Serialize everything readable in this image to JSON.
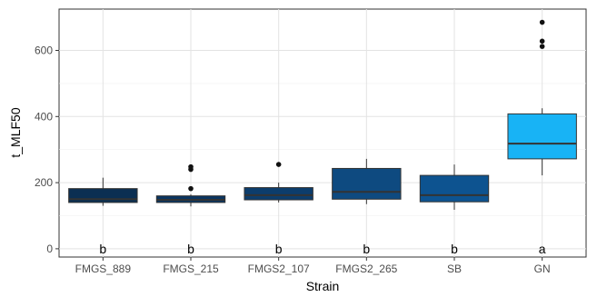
{
  "chart_data": {
    "type": "box",
    "xlabel": "Strain",
    "ylabel": "t_MLF50",
    "ylim": [
      -25,
      725
    ],
    "yticks": [
      0,
      200,
      400,
      600
    ],
    "grid": true,
    "panel_border": true,
    "categories": [
      "FMGS_889",
      "FMGS_215",
      "FMGS2_107",
      "FMGS2_265",
      "SB",
      "GN"
    ],
    "boxes": [
      {
        "category": "FMGS_889",
        "whisker_low": 130,
        "q1": 140,
        "median": 150,
        "q3": 182,
        "whisker_high": 215,
        "outliers": [],
        "color": "#0b2f52",
        "letter": "b"
      },
      {
        "category": "FMGS_215",
        "whisker_low": 128,
        "q1": 140,
        "median": 148,
        "q3": 160,
        "whisker_high": 165,
        "outliers": [
          182,
          240,
          248
        ],
        "color": "#0a3560",
        "letter": "b"
      },
      {
        "category": "FMGS2_107",
        "whisker_low": 140,
        "q1": 148,
        "median": 162,
        "q3": 185,
        "whisker_high": 200,
        "outliers": [
          255
        ],
        "color": "#0c3d6c",
        "letter": "b"
      },
      {
        "category": "FMGS2_265",
        "whisker_low": 135,
        "q1": 150,
        "median": 172,
        "q3": 243,
        "whisker_high": 272,
        "outliers": [],
        "color": "#0e4a80",
        "letter": "b"
      },
      {
        "category": "SB",
        "whisker_low": 118,
        "q1": 142,
        "median": 162,
        "q3": 222,
        "whisker_high": 255,
        "outliers": [],
        "color": "#0d5390",
        "letter": "b"
      },
      {
        "category": "GN",
        "whisker_low": 222,
        "q1": 272,
        "median": 318,
        "q3": 408,
        "whisker_high": 425,
        "outliers": [
          612,
          628,
          685
        ],
        "color": "#18b3f5",
        "letter": "a"
      }
    ]
  }
}
